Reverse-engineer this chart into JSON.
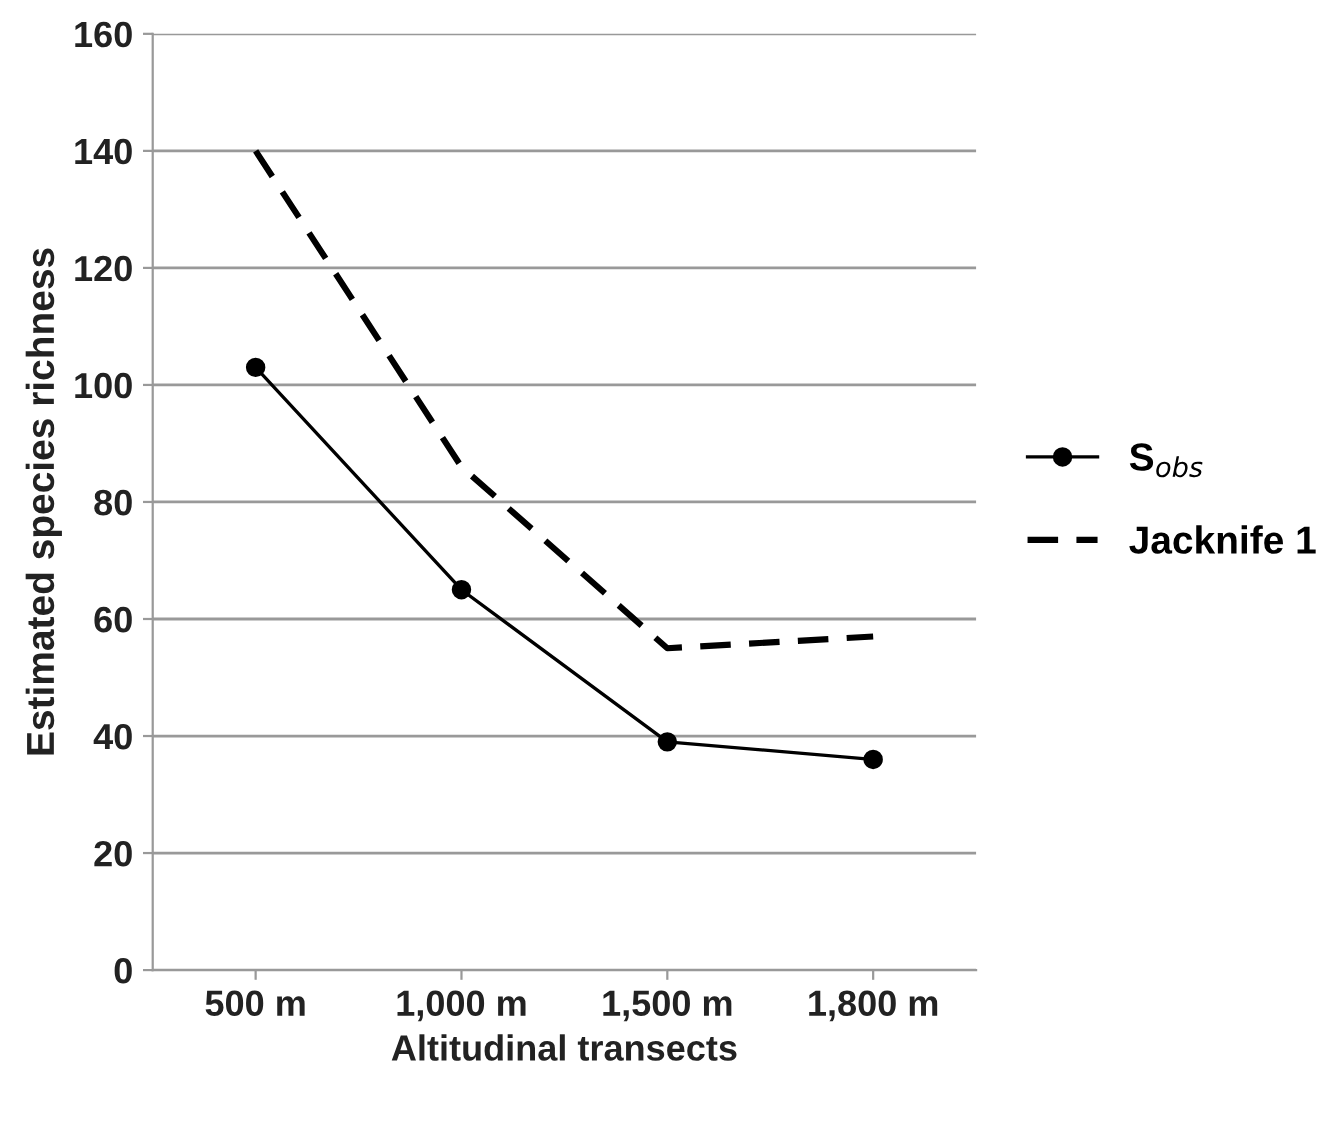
{
  "chart_data": {
    "type": "line",
    "xlabel": "Altitudinal transects",
    "ylabel": "Estimated species richness",
    "categories": [
      "500 m",
      "1,000 m",
      "1,500 m",
      "1,800 m"
    ],
    "series": [
      {
        "name": "S$_{obs}$",
        "color": "#000000",
        "marker": "circle",
        "line_style": "solid",
        "values": [
          103,
          65,
          39,
          36
        ]
      },
      {
        "name": "Jacknife 1",
        "color": "#000000",
        "marker": "none",
        "line_style": "dashed",
        "values": [
          140,
          86,
          55,
          57
        ]
      }
    ],
    "ylim": [
      0,
      160
    ],
    "yticks": [
      0,
      20,
      40,
      60,
      80,
      100,
      120,
      140,
      160
    ],
    "grid": "y",
    "legend": "right"
  }
}
